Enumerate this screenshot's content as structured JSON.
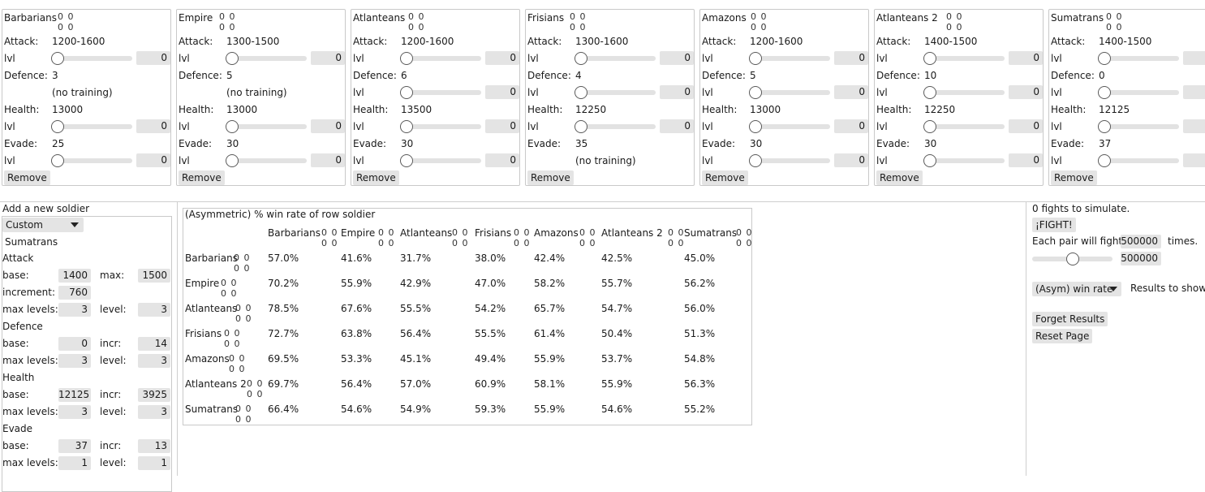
{
  "soldiers": [
    {
      "name": "Barbarians",
      "attack": "1200-1600",
      "attack_lvl": "0",
      "defence": "3",
      "defence_note": "(no training)",
      "health": "13000",
      "health_lvl": "0",
      "evade": "25",
      "evade_lvl": "0"
    },
    {
      "name": "Empire",
      "attack": "1300-1500",
      "attack_lvl": "0",
      "defence": "5",
      "defence_note": "(no training)",
      "health": "13000",
      "health_lvl": "0",
      "evade": "30",
      "evade_lvl": "0"
    },
    {
      "name": "Atlanteans",
      "attack": "1200-1600",
      "attack_lvl": "0",
      "defence": "6",
      "defence_lvl": "0",
      "health": "13500",
      "health_lvl": "0",
      "evade": "30",
      "evade_lvl": "0"
    },
    {
      "name": "Frisians",
      "attack": "1300-1600",
      "attack_lvl": "0",
      "defence": "4",
      "defence_lvl": "0",
      "health": "12250",
      "health_lvl": "0",
      "evade": "35",
      "evade_note": "(no training)"
    },
    {
      "name": "Amazons",
      "attack": "1200-1600",
      "attack_lvl": "0",
      "defence": "5",
      "defence_lvl": "0",
      "health": "13000",
      "health_lvl": "0",
      "evade": "30",
      "evade_lvl": "0"
    },
    {
      "name": "Atlanteans 2",
      "attack": "1400-1500",
      "attack_lvl": "0",
      "defence": "10",
      "defence_lvl": "0",
      "health": "12250",
      "health_lvl": "0",
      "evade": "30",
      "evade_lvl": "0"
    },
    {
      "name": "Sumatrans",
      "attack": "1400-1500",
      "attack_lvl": "0",
      "defence": "0",
      "defence_lvl": "0",
      "health": "12125",
      "health_lvl": "0",
      "evade": "37",
      "evade_lvl": "0"
    }
  ],
  "labels": {
    "attack": "Attack:",
    "defence": "Defence:",
    "health": "Health:",
    "evade": "Evade:",
    "lvl": "lvl",
    "remove": "Remove",
    "zero_pair": "0 0"
  },
  "add_soldier": {
    "title": "Add a new soldier",
    "preset": "Custom",
    "name": "Sumatrans",
    "attack_title": "Attack",
    "attack_base_label": "base:",
    "attack_base": "1400",
    "attack_max_label": "max:",
    "attack_max": "1500",
    "attack_incr_label": "increment:",
    "attack_incr": "760",
    "attack_maxlv_label": "max levels:",
    "attack_maxlv": "3",
    "attack_level_label": "level:",
    "attack_level": "3",
    "defence_title": "Defence",
    "defence_base_label": "base:",
    "defence_base": "0",
    "defence_incr_label": "incr:",
    "defence_incr": "14",
    "defence_maxlv_label": "max levels:",
    "defence_maxlv": "3",
    "defence_level_label": "level:",
    "defence_level": "3",
    "health_title": "Health",
    "health_base_label": "base:",
    "health_base": "12125",
    "health_incr_label": "incr:",
    "health_incr": "3925",
    "health_maxlv_label": "max levels:",
    "health_maxlv": "3",
    "health_level_label": "level:",
    "health_level": "3",
    "evade_title": "Evade",
    "evade_base_label": "base:",
    "evade_base": "37",
    "evade_incr_label": "incr:",
    "evade_incr": "13",
    "evade_maxlv_label": "max levels:",
    "evade_maxlv": "1",
    "evade_level_label": "level:",
    "evade_level": "1"
  },
  "matrix": {
    "caption": "(Asymmetric) % win rate of row soldier",
    "columns": [
      "Barbarians",
      "Empire",
      "Atlanteans",
      "Frisians",
      "Amazons",
      "Atlanteans 2",
      "Sumatrans"
    ],
    "rows": [
      {
        "name": "Barbarians",
        "values": [
          "57.0%",
          "41.6%",
          "31.7%",
          "38.0%",
          "42.4%",
          "42.5%",
          "45.0%"
        ]
      },
      {
        "name": "Empire",
        "values": [
          "70.2%",
          "55.9%",
          "42.9%",
          "47.0%",
          "58.2%",
          "55.7%",
          "56.2%"
        ]
      },
      {
        "name": "Atlanteans",
        "values": [
          "78.5%",
          "67.6%",
          "55.5%",
          "54.2%",
          "65.7%",
          "54.7%",
          "56.0%"
        ]
      },
      {
        "name": "Frisians",
        "values": [
          "72.7%",
          "63.8%",
          "56.4%",
          "55.5%",
          "61.4%",
          "50.4%",
          "51.3%"
        ]
      },
      {
        "name": "Amazons",
        "values": [
          "69.5%",
          "53.3%",
          "45.1%",
          "49.4%",
          "55.9%",
          "53.7%",
          "54.8%"
        ]
      },
      {
        "name": "Atlanteans 2",
        "values": [
          "69.7%",
          "56.4%",
          "57.0%",
          "60.9%",
          "58.1%",
          "55.9%",
          "56.3%"
        ]
      },
      {
        "name": "Sumatrans",
        "values": [
          "66.4%",
          "54.6%",
          "54.9%",
          "59.3%",
          "55.9%",
          "54.6%",
          "55.2%"
        ]
      }
    ]
  },
  "sim": {
    "fights_text": "0 fights to simulate.",
    "fight_button": "¡FIGHT!",
    "each_pair_label": "Each pair will fight",
    "times_value": "500000",
    "times_label": "times.",
    "slider_value": "500000",
    "slider_fraction": 0.5,
    "results_select": "(Asym) win rate",
    "results_label": "Results to show",
    "forget_button": "Forget Results",
    "reset_button": "Reset Page"
  }
}
